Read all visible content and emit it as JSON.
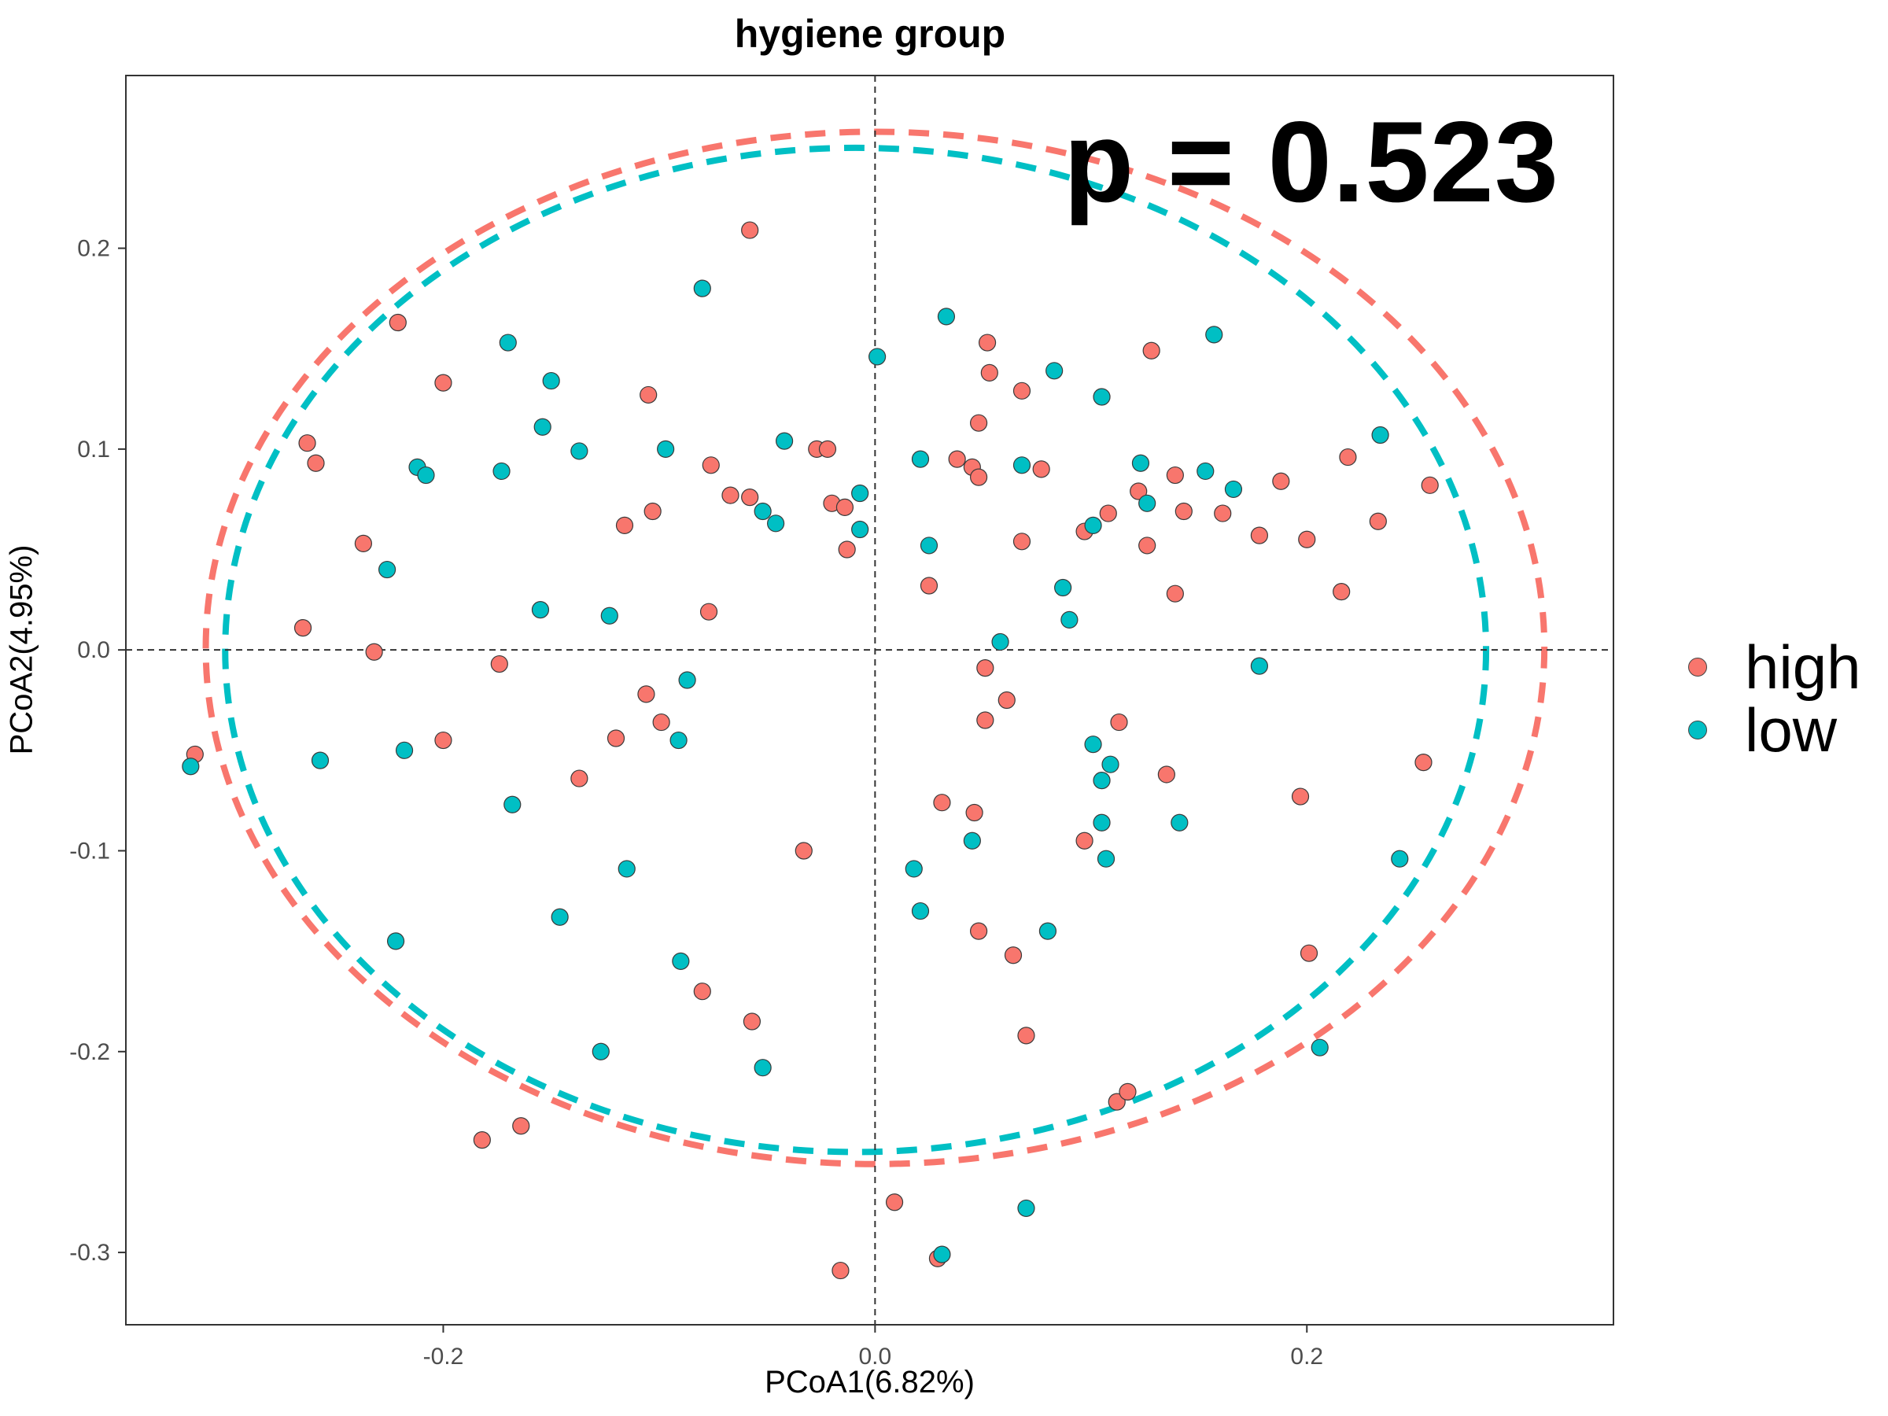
{
  "chart_data": {
    "type": "scatter",
    "title": "hygiene group",
    "xlabel": "PCoA1(6.82%)",
    "ylabel": "PCoA2(4.95%)",
    "annotation": "p = 0.523",
    "xlim": [
      -0.347,
      0.342
    ],
    "ylim": [
      -0.336,
      0.286
    ],
    "x_ticks": [
      -0.2,
      0.0,
      0.2
    ],
    "x_tick_labels": [
      "-0.2",
      "0.0",
      "0.2"
    ],
    "y_ticks": [
      -0.3,
      -0.2,
      -0.1,
      0.0,
      0.1,
      0.2
    ],
    "y_tick_labels": [
      "-0.3",
      "-0.2",
      "-0.1",
      "0.0",
      "0.1",
      "0.2"
    ],
    "grid": false,
    "reference_lines": {
      "x": 0,
      "y": 0
    },
    "legend_position": "right",
    "series": [
      {
        "name": "high",
        "color": "#F8766D",
        "ellipse": {
          "center": [
            0.0,
            0.001
          ],
          "radius_x": 0.31,
          "radius_y": 0.257
        },
        "points": [
          [
            -0.315,
            -0.052
          ],
          [
            -0.263,
            0.103
          ],
          [
            -0.259,
            0.093
          ],
          [
            -0.265,
            0.011
          ],
          [
            -0.221,
            0.163
          ],
          [
            -0.237,
            0.053
          ],
          [
            -0.232,
            -0.001
          ],
          [
            -0.2,
            0.133
          ],
          [
            -0.2,
            -0.045
          ],
          [
            -0.174,
            -0.007
          ],
          [
            -0.182,
            -0.244
          ],
          [
            -0.164,
            -0.237
          ],
          [
            -0.137,
            -0.064
          ],
          [
            -0.12,
            -0.044
          ],
          [
            -0.116,
            0.062
          ],
          [
            -0.105,
            0.127
          ],
          [
            -0.103,
            0.069
          ],
          [
            -0.106,
            -0.022
          ],
          [
            -0.099,
            -0.036
          ],
          [
            -0.076,
            0.092
          ],
          [
            -0.077,
            0.019
          ],
          [
            -0.067,
            0.077
          ],
          [
            -0.08,
            -0.17
          ],
          [
            -0.058,
            0.209
          ],
          [
            -0.058,
            0.076
          ],
          [
            -0.057,
            -0.185
          ],
          [
            -0.033,
            -0.1
          ],
          [
            -0.027,
            0.1
          ],
          [
            -0.022,
            0.1
          ],
          [
            -0.02,
            0.073
          ],
          [
            -0.014,
            0.071
          ],
          [
            -0.013,
            0.05
          ],
          [
            -0.016,
            -0.309
          ],
          [
            0.009,
            -0.275
          ],
          [
            0.025,
            0.032
          ],
          [
            0.029,
            -0.303
          ],
          [
            0.031,
            -0.076
          ],
          [
            0.038,
            0.095
          ],
          [
            0.045,
            0.091
          ],
          [
            0.048,
            0.113
          ],
          [
            0.048,
            0.086
          ],
          [
            0.052,
            0.153
          ],
          [
            0.053,
            0.138
          ],
          [
            0.051,
            -0.009
          ],
          [
            0.051,
            -0.035
          ],
          [
            0.046,
            -0.081
          ],
          [
            0.048,
            -0.14
          ],
          [
            0.068,
            0.129
          ],
          [
            0.068,
            0.054
          ],
          [
            0.061,
            -0.025
          ],
          [
            0.064,
            -0.152
          ],
          [
            0.07,
            -0.192
          ],
          [
            0.077,
            0.09
          ],
          [
            0.097,
            0.059
          ],
          [
            0.097,
            -0.095
          ],
          [
            0.108,
            0.068
          ],
          [
            0.113,
            -0.036
          ],
          [
            0.112,
            -0.225
          ],
          [
            0.117,
            -0.22
          ],
          [
            0.122,
            0.079
          ],
          [
            0.126,
            0.052
          ],
          [
            0.128,
            0.149
          ],
          [
            0.135,
            -0.062
          ],
          [
            0.139,
            0.087
          ],
          [
            0.139,
            0.028
          ],
          [
            0.143,
            0.069
          ],
          [
            0.161,
            0.068
          ],
          [
            0.178,
            0.057
          ],
          [
            0.188,
            0.084
          ],
          [
            0.197,
            -0.073
          ],
          [
            0.2,
            0.055
          ],
          [
            0.201,
            -0.151
          ],
          [
            0.216,
            0.029
          ],
          [
            0.219,
            0.096
          ],
          [
            0.233,
            0.064
          ],
          [
            0.254,
            -0.056
          ],
          [
            0.257,
            0.082
          ]
        ]
      },
      {
        "name": "low",
        "color": "#00BFC4",
        "ellipse": {
          "center": [
            -0.009,
            0.0
          ],
          "radius_x": 0.292,
          "radius_y": 0.25
        },
        "points": [
          [
            -0.317,
            -0.058
          ],
          [
            -0.257,
            -0.055
          ],
          [
            -0.226,
            0.04
          ],
          [
            -0.222,
            -0.145
          ],
          [
            -0.218,
            -0.05
          ],
          [
            -0.212,
            0.091
          ],
          [
            -0.208,
            0.087
          ],
          [
            -0.173,
            0.089
          ],
          [
            -0.17,
            0.153
          ],
          [
            -0.168,
            -0.077
          ],
          [
            -0.155,
            0.02
          ],
          [
            -0.154,
            0.111
          ],
          [
            -0.15,
            0.134
          ],
          [
            -0.146,
            -0.133
          ],
          [
            -0.137,
            0.099
          ],
          [
            -0.127,
            -0.2
          ],
          [
            -0.123,
            0.017
          ],
          [
            -0.115,
            -0.109
          ],
          [
            -0.097,
            0.1
          ],
          [
            -0.09,
            -0.155
          ],
          [
            -0.091,
            -0.045
          ],
          [
            -0.087,
            -0.015
          ],
          [
            -0.08,
            0.18
          ],
          [
            -0.052,
            0.069
          ],
          [
            -0.052,
            -0.208
          ],
          [
            -0.046,
            0.063
          ],
          [
            -0.042,
            0.104
          ],
          [
            -0.007,
            0.078
          ],
          [
            -0.007,
            0.06
          ],
          [
            0.001,
            0.146
          ],
          [
            0.018,
            -0.109
          ],
          [
            0.021,
            -0.13
          ],
          [
            0.021,
            0.095
          ],
          [
            0.025,
            0.052
          ],
          [
            0.031,
            -0.301
          ],
          [
            0.033,
            0.166
          ],
          [
            0.045,
            -0.095
          ],
          [
            0.058,
            0.004
          ],
          [
            0.068,
            0.092
          ],
          [
            0.07,
            -0.278
          ],
          [
            0.08,
            -0.14
          ],
          [
            0.083,
            0.139
          ],
          [
            0.087,
            0.031
          ],
          [
            0.09,
            0.015
          ],
          [
            0.101,
            0.062
          ],
          [
            0.101,
            -0.047
          ],
          [
            0.105,
            0.126
          ],
          [
            0.105,
            -0.065
          ],
          [
            0.105,
            -0.086
          ],
          [
            0.107,
            -0.104
          ],
          [
            0.109,
            -0.057
          ],
          [
            0.123,
            0.093
          ],
          [
            0.126,
            0.073
          ],
          [
            0.141,
            -0.086
          ],
          [
            0.153,
            0.089
          ],
          [
            0.157,
            0.157
          ],
          [
            0.166,
            0.08
          ],
          [
            0.178,
            -0.008
          ],
          [
            0.206,
            -0.198
          ],
          [
            0.234,
            0.107
          ],
          [
            0.243,
            -0.104
          ]
        ]
      }
    ]
  }
}
